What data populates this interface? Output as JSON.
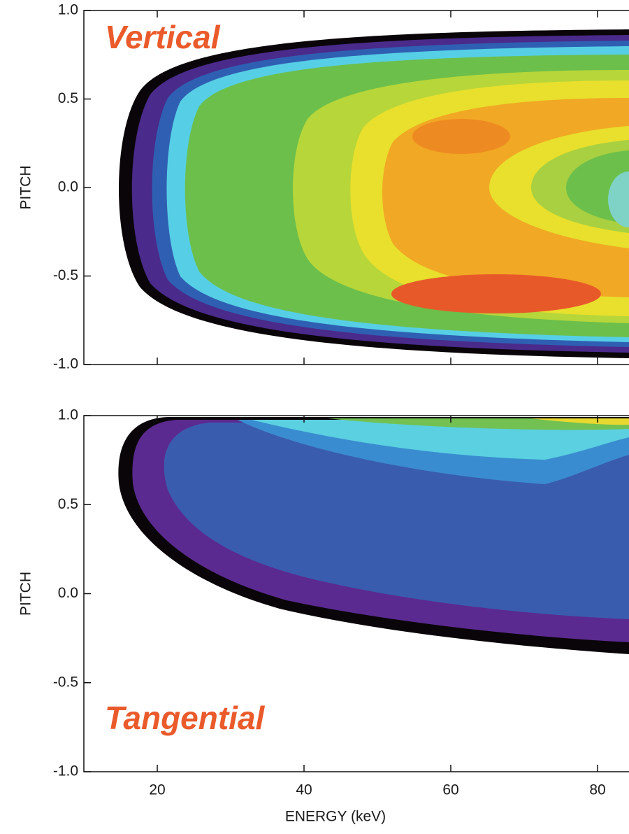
{
  "chart_data": [
    {
      "type": "heatmap",
      "annotation": "Vertical",
      "ylabel": "PITCH",
      "xlim": [
        10,
        85
      ],
      "xticks": [
        20,
        40,
        60,
        80
      ],
      "ylim": [
        -1,
        1
      ],
      "yticks": [
        {
          "value": 1,
          "label": "1.0"
        },
        0.5,
        {
          "value": 0,
          "label": "0.0"
        },
        -0.5,
        {
          "value": -1,
          "label": "-1.0"
        }
      ]
    },
    {
      "type": "heatmap",
      "annotation": "Tangential",
      "ylabel": "PITCH",
      "xlabel": "ENERGY (keV)",
      "xlim": [
        10,
        85
      ],
      "xticks": [
        20,
        40,
        60,
        80
      ],
      "ylim": [
        -1,
        1
      ],
      "yticks": [
        {
          "value": 1,
          "label": "1.0"
        },
        0.5,
        {
          "value": 0,
          "label": "0.0"
        },
        -0.5,
        {
          "value": -1,
          "label": "-1.0"
        }
      ]
    }
  ]
}
